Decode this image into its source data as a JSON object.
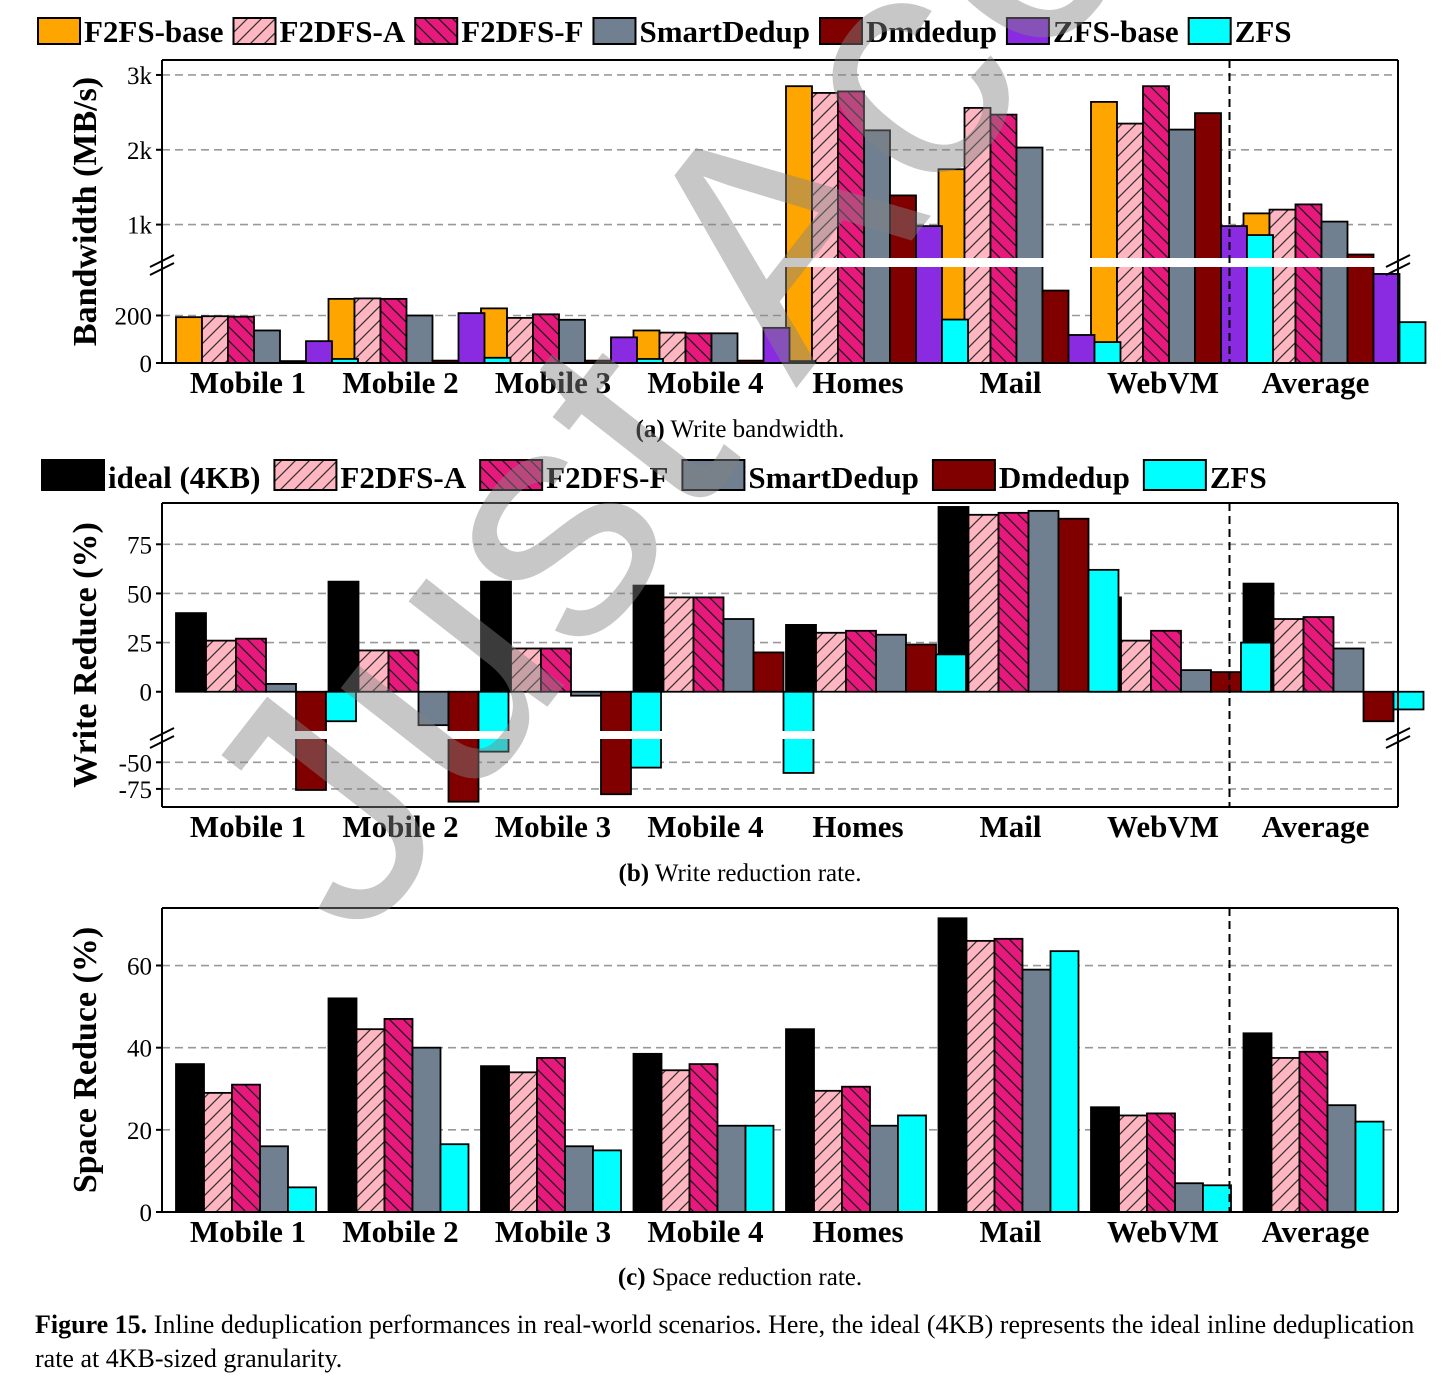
{
  "watermark": "Just Accepted",
  "figure": {
    "label": "Figure 15.",
    "text": "Inline deduplication performances in real-world scenarios. Here, the ideal (4KB) represents the ideal inline deduplication rate at 4KB-sized granularity."
  },
  "colors": {
    "F2FS-base": "#FFA500",
    "ideal": "#000000",
    "F2DFS-A": "#FFB6C1",
    "F2DFS-F": "#E8197D",
    "SmartDedup": "#708090",
    "Dmdedup": "#800000",
    "ZFS-base": "#8A2BE2",
    "ZFS": "#00FFFF"
  },
  "chart_data": [
    {
      "type": "bar",
      "subcaption_tag": "(a)",
      "subcaption_text": "Write bandwidth.",
      "ylabel": "Bandwidth (MB/s)",
      "broken_axis": true,
      "upper_ticks": [
        "1k",
        "2k",
        "3k"
      ],
      "lower_ticks": [
        "0",
        "200"
      ],
      "ylim_lower": [
        0,
        400
      ],
      "ylim_upper": [
        500,
        3200
      ],
      "categories": [
        "Mobile 1",
        "Mobile 2",
        "Mobile 3",
        "Mobile 4",
        "Homes",
        "Mail",
        "WebVM",
        "Average"
      ],
      "legend": "top",
      "series": [
        {
          "name": "F2FS-base",
          "values": [
            193,
            270,
            230,
            137,
            2850,
            1740,
            2640,
            1150
          ]
        },
        {
          "name": "F2DFS-A",
          "values": [
            197,
            272,
            190,
            128,
            2760,
            2560,
            2350,
            1200
          ]
        },
        {
          "name": "F2DFS-F",
          "values": [
            195,
            270,
            205,
            125,
            2780,
            2470,
            2850,
            1270
          ]
        },
        {
          "name": "SmartDedup",
          "values": [
            137,
            200,
            182,
            125,
            2260,
            2030,
            2270,
            1040
          ]
        },
        {
          "name": "Dmdedup",
          "values": [
            8,
            10,
            10,
            10,
            1390,
            305,
            2490,
            600
          ]
        },
        {
          "name": "ZFS-base",
          "values": [
            92,
            210,
            108,
            148,
            980,
            118,
            980,
            375
          ]
        },
        {
          "name": "ZFS",
          "values": [
            17,
            22,
            17,
            8,
            183,
            88,
            860,
            172
          ]
        }
      ]
    },
    {
      "type": "bar",
      "subcaption_tag": "(b)",
      "subcaption_text": "Write reduction rate.",
      "ylabel": "Write Reduce (%)",
      "broken_axis": true,
      "upper_ticks": [
        "0",
        "25",
        "50",
        "75"
      ],
      "lower_ticks": [
        "-50",
        "-75"
      ],
      "ylim_upper": [
        -22,
        96
      ],
      "ylim_lower": [
        -92,
        -30
      ],
      "categories": [
        "Mobile 1",
        "Mobile 2",
        "Mobile 3",
        "Mobile 4",
        "Homes",
        "Mail",
        "WebVM",
        "Average"
      ],
      "legend": "top",
      "series": [
        {
          "name": "ideal (4KB)",
          "values": [
            40,
            56,
            56,
            54,
            34,
            94,
            48,
            55
          ]
        },
        {
          "name": "F2DFS-A",
          "values": [
            26,
            21,
            22,
            48,
            30,
            90,
            26,
            37
          ]
        },
        {
          "name": "F2DFS-F",
          "values": [
            27,
            21,
            22,
            48,
            31,
            91,
            31,
            38
          ]
        },
        {
          "name": "SmartDedup",
          "values": [
            4,
            -17,
            -2,
            37,
            29,
            92,
            11,
            22
          ]
        },
        {
          "name": "Dmdedup",
          "values": [
            -76,
            -87,
            -80,
            20,
            24,
            88,
            10,
            -15
          ]
        },
        {
          "name": "ZFS",
          "values": [
            -15,
            -40,
            -55,
            -60,
            19,
            62,
            25,
            -9
          ]
        }
      ]
    },
    {
      "type": "bar",
      "subcaption_tag": "(c)",
      "subcaption_text": "Space reduction rate.",
      "ylabel": "Space Reduce (%)",
      "ticks": [
        "0",
        "20",
        "40",
        "60"
      ],
      "ylim": [
        0,
        74
      ],
      "categories": [
        "Mobile 1",
        "Mobile 2",
        "Mobile 3",
        "Mobile 4",
        "Homes",
        "Mail",
        "WebVM",
        "Average"
      ],
      "series": [
        {
          "name": "ideal (4KB)",
          "values": [
            36,
            52,
            35.5,
            38.5,
            44.5,
            71.5,
            25.5,
            43.5
          ]
        },
        {
          "name": "F2DFS-A",
          "values": [
            29,
            44.5,
            34,
            34.5,
            29.5,
            66,
            23.5,
            37.5
          ]
        },
        {
          "name": "F2DFS-F",
          "values": [
            31,
            47,
            37.5,
            36,
            30.5,
            66.5,
            24,
            39
          ]
        },
        {
          "name": "SmartDedup",
          "values": [
            16,
            40,
            16,
            21,
            21,
            59,
            7,
            26
          ]
        },
        {
          "name": "ZFS",
          "values": [
            6,
            16.5,
            15,
            21,
            23.5,
            63.5,
            6.5,
            22
          ]
        }
      ]
    }
  ]
}
